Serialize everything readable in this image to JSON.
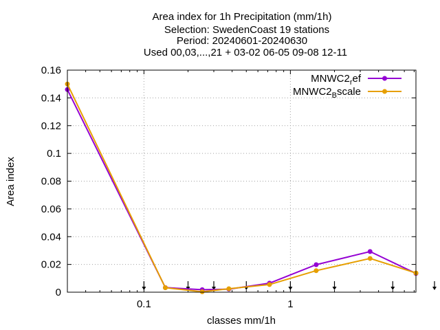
{
  "chart_data": {
    "type": "line",
    "title_lines": [
      "Area index  for 1h Precipitation (mm/1h)",
      "Selection: SwedenCoast     19 stations",
      "Period: 20240601-20240630",
      "Used 00,03,...,21 + 03-02 06-05 09-08 12-11"
    ],
    "xlabel": "classes mm/1h",
    "ylabel": "Area index",
    "x_scale": "log",
    "xlim": [
      0.03,
      7.2
    ],
    "ylim": [
      0,
      0.16
    ],
    "x_ticks": [
      0.1,
      1
    ],
    "x_tick_labels": [
      "0.1",
      "1"
    ],
    "y_ticks": [
      0,
      0.02,
      0.04,
      0.06,
      0.08,
      0.1,
      0.12,
      0.14,
      0.16
    ],
    "y_tick_labels": [
      "0",
      "0.02",
      "0.04",
      "0.06",
      "0.08",
      "0.1",
      "0.12",
      "0.14",
      "0.16"
    ],
    "grid": true,
    "legend_position": "top-right",
    "class_markers_x": [
      0.1,
      0.2,
      0.3,
      0.5,
      1,
      2,
      5,
      10
    ],
    "series": [
      {
        "name": "MNWC2_ref",
        "legend_main": "MNWC2",
        "legend_sub": "r",
        "legend_tail": "ef",
        "color": "#9400d3",
        "x": [
          0.03,
          0.14,
          0.25,
          0.38,
          0.72,
          1.5,
          3.5,
          7.2
        ],
        "values": [
          0.146,
          0.0033,
          0.0018,
          0.0022,
          0.0065,
          0.0198,
          0.0293,
          0.0135
        ]
      },
      {
        "name": "MNWC2_Bscale",
        "legend_main": "MNWC2",
        "legend_sub": "B",
        "legend_tail": "scale",
        "color": "#e69f00",
        "x": [
          0.03,
          0.14,
          0.25,
          0.38,
          0.72,
          1.5,
          3.5,
          7.2
        ],
        "values": [
          0.15,
          0.0032,
          0.0003,
          0.0025,
          0.0055,
          0.0155,
          0.0243,
          0.0138
        ]
      }
    ]
  }
}
